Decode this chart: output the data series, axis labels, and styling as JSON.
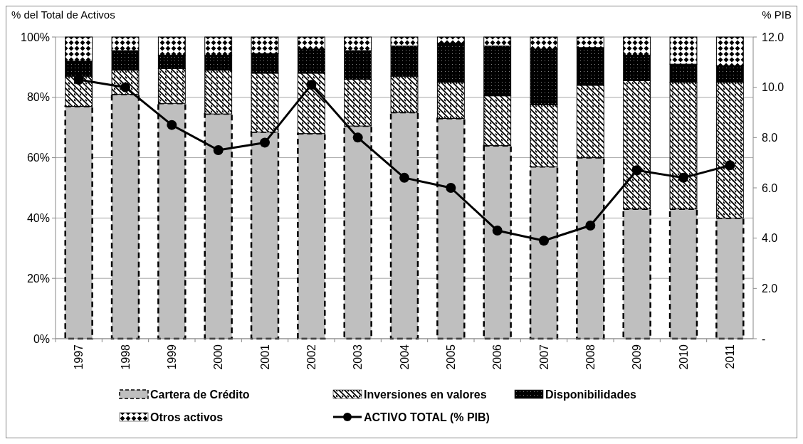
{
  "chart_data": {
    "type": "bar",
    "stacked": true,
    "ylabel": "% del Total de Activos",
    "y2label": "% PIB",
    "categories": [
      "1997",
      "1998",
      "1999",
      "2000",
      "2001",
      "2002",
      "2003",
      "2004",
      "2005",
      "2006",
      "2007",
      "2008",
      "2009",
      "2010",
      "2011"
    ],
    "series": [
      {
        "name": "Cartera de Crédito",
        "color": "#bfbfbf",
        "values": [
          77,
          81,
          78,
          74.5,
          68.5,
          68,
          70.5,
          75,
          73,
          64,
          57,
          60,
          43,
          43,
          40
        ]
      },
      {
        "name": "Inversiones en valores",
        "color": "#000000",
        "values": [
          10,
          8,
          11.5,
          14.5,
          19.5,
          20,
          15.5,
          12,
          12,
          16.5,
          20.5,
          24,
          42.5,
          42,
          45
        ]
      },
      {
        "name": "Disponibilidades",
        "color": "#000000",
        "values": [
          5,
          6.5,
          4.5,
          5,
          6.5,
          8,
          9.5,
          10,
          13,
          16.5,
          18.5,
          12.5,
          8.5,
          6,
          5.5
        ]
      },
      {
        "name": "Otros activos",
        "color": "#000000",
        "values": [
          8,
          4.5,
          6,
          6,
          5.5,
          4,
          4.5,
          3,
          2,
          3,
          4,
          3.5,
          6,
          9,
          9.5
        ]
      },
      {
        "name": "ACTIVO TOTAL (% PIB)",
        "type": "line",
        "axis": "y2",
        "color": "#000000",
        "marker": "circle",
        "values": [
          10.3,
          10.0,
          8.5,
          7.5,
          7.8,
          10.1,
          8.0,
          6.4,
          6.0,
          4.3,
          3.9,
          4.5,
          6.7,
          6.4,
          6.9
        ]
      }
    ],
    "ylim": [
      0,
      100
    ],
    "yticks": [
      {
        "value": 0,
        "label": "0%"
      },
      {
        "value": 20,
        "label": "20%"
      },
      {
        "value": 40,
        "label": "40%"
      },
      {
        "value": 60,
        "label": "60%"
      },
      {
        "value": 80,
        "label": "80%"
      },
      {
        "value": 100,
        "label": "100%"
      }
    ],
    "y2lim": [
      0,
      12
    ],
    "y2ticks": [
      {
        "value": 0,
        "label": "-"
      },
      {
        "value": 2,
        "label": "2.0"
      },
      {
        "value": 4,
        "label": "4.0"
      },
      {
        "value": 6,
        "label": "6.0"
      },
      {
        "value": 8,
        "label": "8.0"
      },
      {
        "value": 10,
        "label": "10.0"
      },
      {
        "value": 12,
        "label": "12.0"
      }
    ],
    "grid": "y",
    "legend": "bottom"
  }
}
